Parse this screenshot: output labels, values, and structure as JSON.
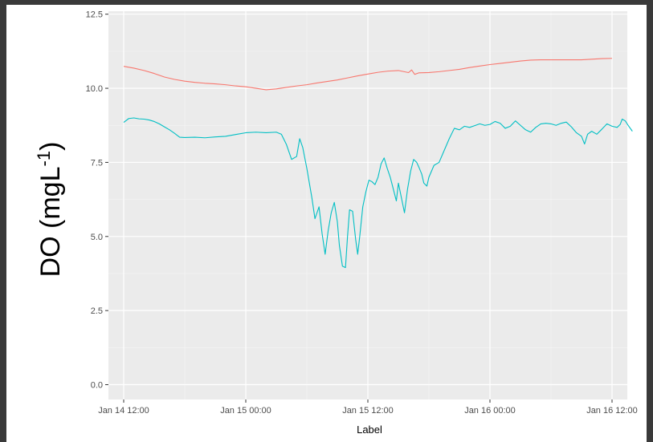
{
  "chart_data": {
    "type": "line",
    "xlabel": "Label",
    "ylabel_main": "DO (mgL",
    "ylabel_sup": "-1",
    "ylabel_close": ")",
    "xlim": [
      -1.5,
      49.5
    ],
    "ylim": [
      -0.5,
      12.6
    ],
    "grid": true,
    "panel_background": "#ebebeb",
    "x_ticks": [
      {
        "value": 0,
        "label": "Jan 14 12:00"
      },
      {
        "value": 12,
        "label": "Jan 15 00:00"
      },
      {
        "value": 24,
        "label": "Jan 15 12:00"
      },
      {
        "value": 36,
        "label": "Jan 16 00:00"
      },
      {
        "value": 48,
        "label": "Jan 16 12:00"
      }
    ],
    "y_ticks": [
      {
        "value": 0,
        "label": "0.0"
      },
      {
        "value": 2.5,
        "label": "2.5"
      },
      {
        "value": 5,
        "label": "5.0"
      },
      {
        "value": 7.5,
        "label": "7.5"
      },
      {
        "value": 10,
        "label": "10.0"
      },
      {
        "value": 12.5,
        "label": "12.5"
      }
    ],
    "series": [
      {
        "color": "#f8766d",
        "points": [
          [
            0,
            10.74
          ],
          [
            1,
            10.68
          ],
          [
            2,
            10.6
          ],
          [
            3,
            10.5
          ],
          [
            4,
            10.38
          ],
          [
            5,
            10.3
          ],
          [
            6,
            10.24
          ],
          [
            7,
            10.2
          ],
          [
            8,
            10.17
          ],
          [
            9,
            10.15
          ],
          [
            10,
            10.12
          ],
          [
            11,
            10.08
          ],
          [
            12,
            10.05
          ],
          [
            13,
            10.0
          ],
          [
            14,
            9.95
          ],
          [
            15,
            9.98
          ],
          [
            16,
            10.03
          ],
          [
            17,
            10.08
          ],
          [
            18,
            10.12
          ],
          [
            19,
            10.18
          ],
          [
            20,
            10.23
          ],
          [
            21,
            10.28
          ],
          [
            22,
            10.35
          ],
          [
            23,
            10.42
          ],
          [
            24,
            10.48
          ],
          [
            25,
            10.54
          ],
          [
            26,
            10.58
          ],
          [
            27,
            10.6
          ],
          [
            28,
            10.53
          ],
          [
            28.3,
            10.62
          ],
          [
            28.6,
            10.47
          ],
          [
            29,
            10.52
          ],
          [
            30,
            10.53
          ],
          [
            31,
            10.56
          ],
          [
            32,
            10.6
          ],
          [
            33,
            10.64
          ],
          [
            34,
            10.7
          ],
          [
            35,
            10.75
          ],
          [
            36,
            10.8
          ],
          [
            37,
            10.84
          ],
          [
            38,
            10.88
          ],
          [
            39,
            10.92
          ],
          [
            40,
            10.95
          ],
          [
            41,
            10.96
          ],
          [
            42,
            10.96
          ],
          [
            43,
            10.96
          ],
          [
            44,
            10.96
          ],
          [
            45,
            10.96
          ],
          [
            46,
            10.98
          ],
          [
            47,
            11.0
          ],
          [
            48,
            11.01
          ]
        ]
      },
      {
        "color": "#00bfc4",
        "points": [
          [
            0,
            8.85
          ],
          [
            0.5,
            8.98
          ],
          [
            1,
            9.0
          ],
          [
            1.5,
            8.97
          ],
          [
            2,
            8.96
          ],
          [
            2.5,
            8.93
          ],
          [
            3,
            8.88
          ],
          [
            3.5,
            8.8
          ],
          [
            4,
            8.7
          ],
          [
            4.5,
            8.6
          ],
          [
            5,
            8.48
          ],
          [
            5.5,
            8.35
          ],
          [
            6,
            8.34
          ],
          [
            7,
            8.35
          ],
          [
            8,
            8.33
          ],
          [
            9,
            8.36
          ],
          [
            10,
            8.38
          ],
          [
            11,
            8.44
          ],
          [
            12,
            8.5
          ],
          [
            13,
            8.52
          ],
          [
            14,
            8.5
          ],
          [
            15,
            8.52
          ],
          [
            15.5,
            8.45
          ],
          [
            16,
            8.1
          ],
          [
            16.5,
            7.6
          ],
          [
            17,
            7.7
          ],
          [
            17.3,
            8.3
          ],
          [
            17.6,
            8.0
          ],
          [
            18,
            7.3
          ],
          [
            18.5,
            6.3
          ],
          [
            18.8,
            5.6
          ],
          [
            19.2,
            6.0
          ],
          [
            19.5,
            5.1
          ],
          [
            19.8,
            4.4
          ],
          [
            20.1,
            5.2
          ],
          [
            20.4,
            5.8
          ],
          [
            20.7,
            6.15
          ],
          [
            21.0,
            5.5
          ],
          [
            21.2,
            4.7
          ],
          [
            21.5,
            4.0
          ],
          [
            21.8,
            3.95
          ],
          [
            22.0,
            5.0
          ],
          [
            22.2,
            5.9
          ],
          [
            22.5,
            5.85
          ],
          [
            22.8,
            4.9
          ],
          [
            23.0,
            4.4
          ],
          [
            23.2,
            5.0
          ],
          [
            23.5,
            6.0
          ],
          [
            23.8,
            6.5
          ],
          [
            24.1,
            6.9
          ],
          [
            24.4,
            6.85
          ],
          [
            24.7,
            6.75
          ],
          [
            25,
            7.0
          ],
          [
            25.3,
            7.45
          ],
          [
            25.6,
            7.65
          ],
          [
            25.9,
            7.3
          ],
          [
            26.2,
            7.0
          ],
          [
            26.5,
            6.6
          ],
          [
            26.8,
            6.2
          ],
          [
            27.0,
            6.8
          ],
          [
            27.3,
            6.3
          ],
          [
            27.6,
            5.8
          ],
          [
            27.9,
            6.6
          ],
          [
            28.2,
            7.2
          ],
          [
            28.5,
            7.6
          ],
          [
            28.8,
            7.5
          ],
          [
            29.0,
            7.35
          ],
          [
            29.3,
            7.1
          ],
          [
            29.5,
            6.8
          ],
          [
            29.8,
            6.7
          ],
          [
            30,
            7.0
          ],
          [
            30.5,
            7.4
          ],
          [
            31,
            7.5
          ],
          [
            31.5,
            7.9
          ],
          [
            32,
            8.3
          ],
          [
            32.5,
            8.65
          ],
          [
            33,
            8.6
          ],
          [
            33.5,
            8.72
          ],
          [
            34,
            8.68
          ],
          [
            34.5,
            8.74
          ],
          [
            35,
            8.8
          ],
          [
            35.5,
            8.75
          ],
          [
            36,
            8.78
          ],
          [
            36.5,
            8.88
          ],
          [
            37,
            8.82
          ],
          [
            37.5,
            8.65
          ],
          [
            38,
            8.72
          ],
          [
            38.5,
            8.9
          ],
          [
            39,
            8.75
          ],
          [
            39.5,
            8.6
          ],
          [
            40,
            8.52
          ],
          [
            40.5,
            8.68
          ],
          [
            41,
            8.8
          ],
          [
            41.5,
            8.82
          ],
          [
            42,
            8.8
          ],
          [
            42.5,
            8.75
          ],
          [
            43,
            8.82
          ],
          [
            43.5,
            8.86
          ],
          [
            44,
            8.7
          ],
          [
            44.5,
            8.5
          ],
          [
            45,
            8.38
          ],
          [
            45.3,
            8.12
          ],
          [
            45.6,
            8.45
          ],
          [
            46,
            8.55
          ],
          [
            46.5,
            8.45
          ],
          [
            47,
            8.62
          ],
          [
            47.5,
            8.8
          ],
          [
            48,
            8.72
          ],
          [
            48.5,
            8.68
          ],
          [
            48.8,
            8.78
          ],
          [
            49,
            8.96
          ],
          [
            49.3,
            8.9
          ],
          [
            49.6,
            8.74
          ],
          [
            50,
            8.55
          ]
        ]
      }
    ]
  }
}
